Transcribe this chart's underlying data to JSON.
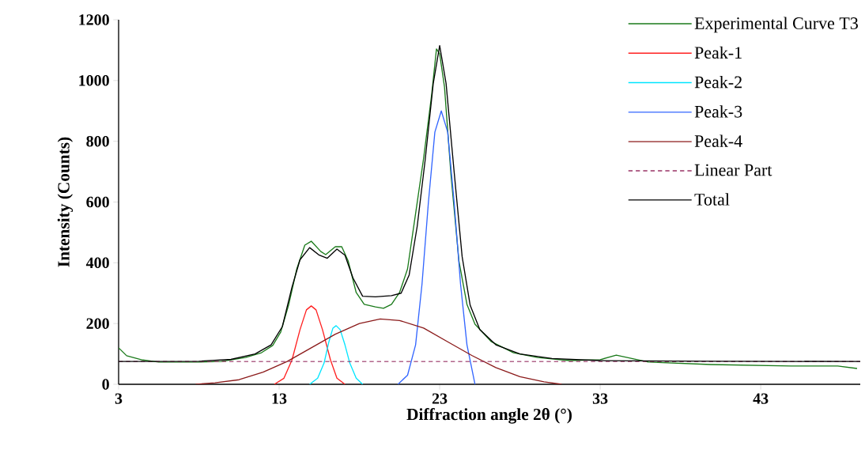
{
  "chart_data": {
    "type": "line",
    "xlabel": "Diffraction angle 2θ (°)",
    "ylabel": "Intensity (Counts)",
    "xlim": [
      3,
      49.2
    ],
    "ylim": [
      0,
      1200
    ],
    "xticks": [
      3,
      13,
      23,
      33,
      43
    ],
    "yticks": [
      0,
      200,
      400,
      600,
      800,
      1000,
      1200
    ],
    "grid": false,
    "legend": "top right",
    "series": [
      {
        "name": "Experimental Curve T3",
        "color": "#1a7a1a",
        "x": [
          3,
          3.5,
          4.5,
          5.5,
          8,
          9.4,
          10.9,
          11.9,
          12.6,
          13.1,
          13.6,
          14.1,
          14.6,
          15.0,
          15.6,
          15.9,
          16.5,
          16.9,
          17.3,
          17.8,
          18.3,
          19.0,
          19.5,
          20.0,
          20.5,
          21.0,
          21.5,
          22.0,
          22.5,
          22.8,
          23.0,
          23.3,
          23.7,
          24.2,
          24.7,
          25.2,
          26.2,
          27.6,
          29.1,
          31.1,
          33.0,
          34.0,
          36.0,
          39.9,
          44.9,
          47.8,
          49.0
        ],
        "values": [
          120,
          94,
          80,
          73,
          73,
          75,
          88,
          104,
          128,
          172,
          263,
          380,
          458,
          471,
          437,
          427,
          453,
          453,
          406,
          302,
          263,
          255,
          250,
          263,
          302,
          380,
          562,
          744,
          953,
          1104,
          1088,
          979,
          692,
          406,
          263,
          198,
          141,
          104,
          88,
          78,
          81,
          96,
          73,
          65,
          60,
          60,
          52
        ]
      },
      {
        "name": "Peak-1",
        "color": "#ff2020",
        "x": [
          12.7,
          13.3,
          13.8,
          14.3,
          14.7,
          15.0,
          15.3,
          15.7,
          16.2,
          16.6,
          17.1
        ],
        "values": [
          0,
          20,
          80,
          180,
          245,
          258,
          245,
          180,
          80,
          20,
          0
        ]
      },
      {
        "name": "Peak-2",
        "color": "#00e5ff",
        "x": [
          14.9,
          15.4,
          15.8,
          16.1,
          16.35,
          16.55,
          16.8,
          17.1,
          17.4,
          17.8,
          18.2
        ],
        "values": [
          0,
          20,
          70,
          140,
          185,
          193,
          180,
          130,
          70,
          20,
          0
        ]
      },
      {
        "name": "Peak-3",
        "color": "#3366ff",
        "x": [
          20.4,
          21.0,
          21.5,
          21.9,
          22.3,
          22.7,
          23.1,
          23.5,
          23.9,
          24.3,
          24.7,
          25.2
        ],
        "values": [
          0,
          30,
          130,
          330,
          600,
          830,
          900,
          830,
          600,
          330,
          130,
          0
        ]
      },
      {
        "name": "Peak-4",
        "color": "#8b1a1a",
        "x": [
          7.8,
          9,
          10.5,
          12,
          13.5,
          15,
          16.5,
          18,
          19.3,
          20.5,
          22,
          23.5,
          25,
          26.5,
          28,
          29.5,
          30.6
        ],
        "values": [
          0,
          5,
          15,
          40,
          75,
          120,
          165,
          200,
          215,
          210,
          185,
          140,
          95,
          55,
          25,
          8,
          0
        ]
      },
      {
        "name": "Linear Part",
        "color": "#993366",
        "line_style": "dashed",
        "x": [
          3,
          49.2
        ],
        "values": [
          75,
          75
        ]
      },
      {
        "name": "Total",
        "color": "#000000",
        "x": [
          3,
          8,
          10,
          11.5,
          12.5,
          13.2,
          13.8,
          14.3,
          14.9,
          15.5,
          16.0,
          16.6,
          17.1,
          17.6,
          18.2,
          19,
          20,
          20.6,
          21.1,
          21.6,
          22.1,
          22.6,
          23.0,
          23.4,
          23.9,
          24.4,
          24.9,
          25.5,
          26.5,
          28,
          30,
          33,
          40,
          49.2
        ],
        "values": [
          75,
          76,
          82,
          100,
          130,
          190,
          320,
          410,
          450,
          425,
          415,
          445,
          425,
          350,
          290,
          288,
          292,
          300,
          360,
          520,
          740,
          990,
          1115,
          990,
          700,
          420,
          260,
          180,
          130,
          100,
          85,
          78,
          76,
          75
        ]
      }
    ]
  }
}
